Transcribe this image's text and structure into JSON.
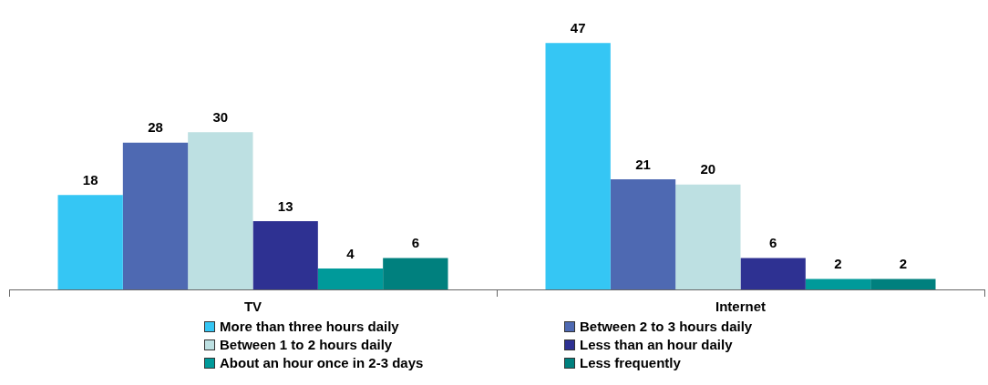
{
  "chart_data": {
    "type": "bar",
    "categories": [
      "TV",
      "Internet"
    ],
    "series": [
      {
        "name": "More than three hours daily",
        "color": "#35c6f4",
        "values": [
          18,
          47
        ]
      },
      {
        "name": "Between 2 to 3 hours daily",
        "color": "#4e69b2",
        "values": [
          28,
          21
        ]
      },
      {
        "name": "Between 1 to 2 hours daily",
        "color": "#bde0e2",
        "values": [
          30,
          20
        ]
      },
      {
        "name": "Less than an hour daily",
        "color": "#2e3192",
        "values": [
          13,
          6
        ]
      },
      {
        "name": "About an hour once in 2-3 days",
        "color": "#009a9a",
        "values": [
          4,
          2
        ]
      },
      {
        "name": "Less frequently",
        "color": "#00807e",
        "values": [
          6,
          2
        ]
      }
    ],
    "data_labels": true,
    "grid": false,
    "legend": "bottom"
  }
}
